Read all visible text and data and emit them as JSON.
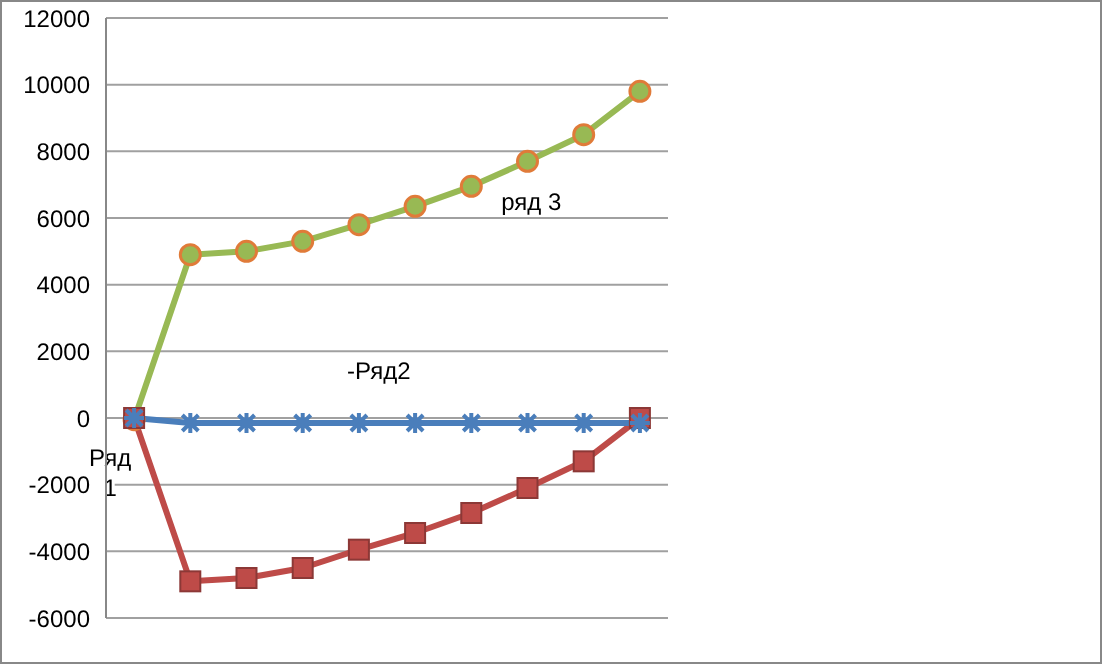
{
  "chart_data": {
    "type": "line",
    "categories": [
      null,
      null,
      null,
      null,
      null,
      null,
      null,
      null,
      null,
      null
    ],
    "series": [
      {
        "color": "#4a7ebb",
        "marker": "cross",
        "values": [
          0,
          -150,
          -150,
          -150,
          -150,
          -150,
          -150,
          -150,
          -150,
          -150
        ]
      },
      {
        "color": "#be4b48",
        "marker": "square",
        "values": [
          0,
          -4900,
          -4800,
          -4500,
          -3950,
          -3450,
          -2850,
          -2100,
          -1300,
          0
        ]
      },
      {
        "color": "#98b954",
        "marker": "circle",
        "values": [
          -50,
          4900,
          5000,
          5300,
          5800,
          6350,
          6950,
          7700,
          8500,
          9800
        ]
      }
    ],
    "annotations": [
      "Ряд 1",
      "-Ряд2",
      "ряд 3"
    ],
    "ylim": [
      -6000,
      12000
    ],
    "yticks": [
      -6000,
      -4000,
      -2000,
      0,
      2000,
      4000,
      6000,
      8000,
      10000,
      12000
    ],
    "grid": "y"
  }
}
